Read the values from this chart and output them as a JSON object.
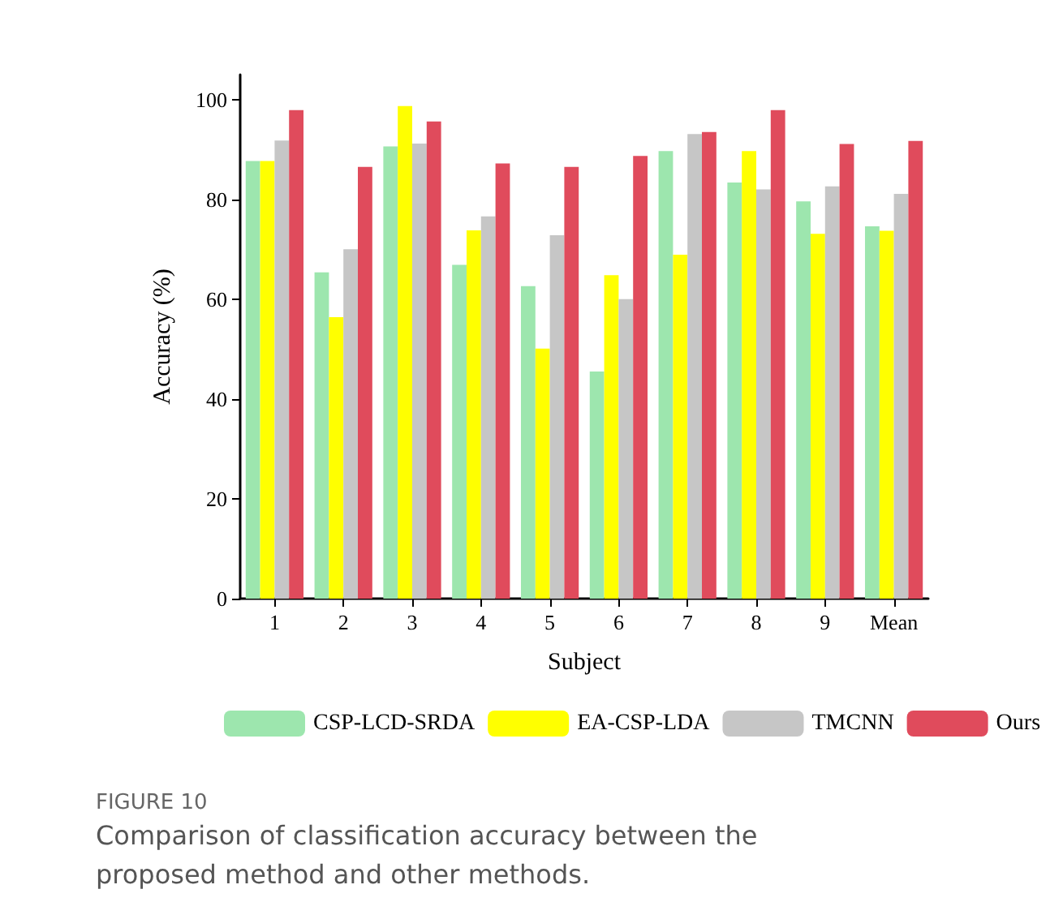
{
  "chart_data": {
    "type": "bar",
    "xlabel": "Subject",
    "ylabel": "Accuracy (%)",
    "categories": [
      "1",
      "2",
      "3",
      "4",
      "5",
      "6",
      "7",
      "8",
      "9",
      "Mean"
    ],
    "series": [
      {
        "name": "CSP-LCD-SRDA",
        "color": "#9de6ae",
        "values": [
          87.7,
          65.4,
          90.6,
          66.9,
          62.6,
          45.5,
          89.7,
          83.4,
          79.6,
          74.6
        ]
      },
      {
        "name": "EA-CSP-LDA",
        "color": "#ffff00",
        "values": [
          87.7,
          56.4,
          98.7,
          73.8,
          50.1,
          64.8,
          68.9,
          89.7,
          73.1,
          73.7
        ]
      },
      {
        "name": "TMCNN",
        "color": "#c6c6c6",
        "values": [
          91.8,
          70.0,
          91.2,
          76.6,
          72.8,
          60.0,
          93.1,
          82.0,
          82.6,
          81.1
        ]
      },
      {
        "name": "Ours",
        "color": "#e04b5c",
        "values": [
          97.9,
          86.5,
          95.6,
          87.2,
          86.5,
          88.7,
          93.5,
          97.9,
          91.1,
          91.7
        ]
      }
    ],
    "ylim": [
      0,
      105
    ],
    "yticks": [
      0,
      20,
      40,
      60,
      80,
      100
    ],
    "grid": false,
    "legend": "bottom",
    "annotations": [
      "FIGURE 10",
      "Comparison of classification accuracy between the proposed method and other methods."
    ]
  }
}
